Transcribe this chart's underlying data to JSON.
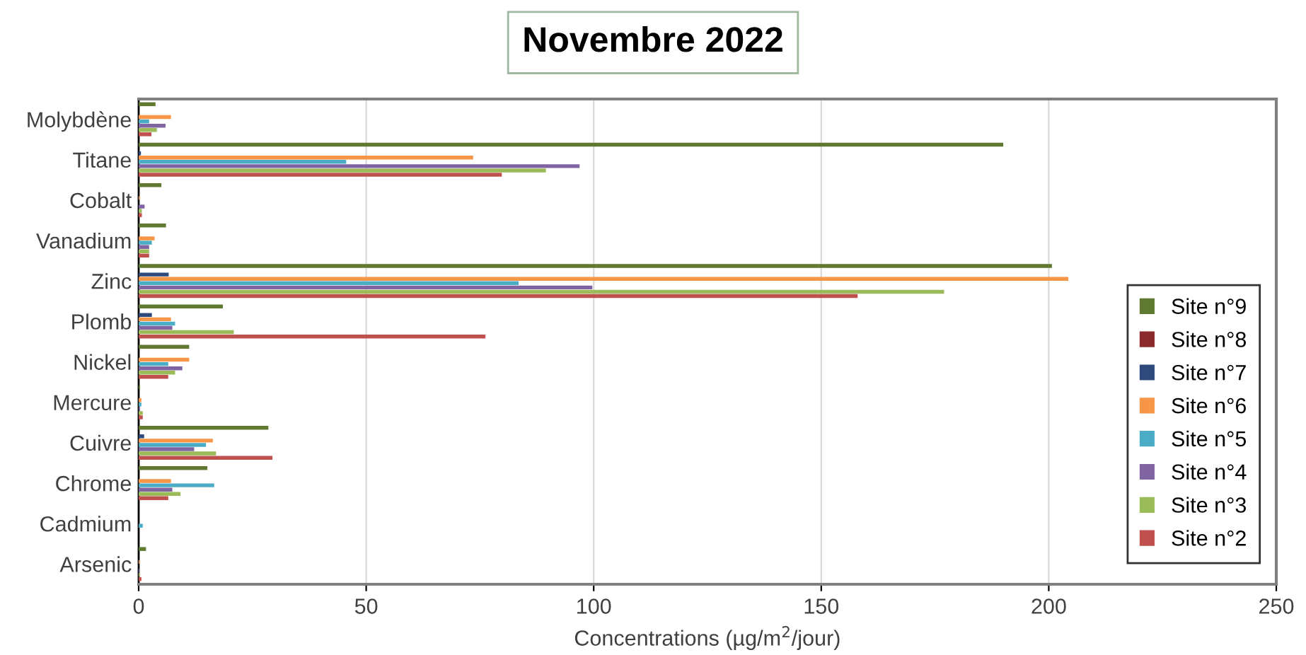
{
  "chart_data": {
    "type": "bar",
    "orientation": "horizontal",
    "title": "Novembre 2022",
    "xlabel": "Concentrations (µg/m$^{2}$/jour)",
    "categories": [
      "Molybdène",
      "Titane",
      "Cobalt",
      "Vanadium",
      "Zinc",
      "Plomb",
      "Nickel",
      "Mercure",
      "Cuivre",
      "Chrome",
      "Cadmium",
      "Arsenic"
    ],
    "series": [
      {
        "name": "Site n°9",
        "color": "#5f7a30",
        "values": [
          3.7,
          190,
          5.0,
          6.0,
          200.7,
          18.5,
          11.1,
          0.3,
          28.5,
          15.1,
          null,
          1.6
        ]
      },
      {
        "name": "Site n°8",
        "color": "#8b2a2a",
        "values": [
          null,
          null,
          null,
          null,
          null,
          null,
          null,
          null,
          null,
          null,
          null,
          null
        ]
      },
      {
        "name": "Site n°7",
        "color": "#2e4a7d",
        "values": [
          null,
          0.5,
          null,
          null,
          6.6,
          2.9,
          null,
          null,
          1.2,
          null,
          null,
          null
        ]
      },
      {
        "name": "Site n°6",
        "color": "#f79646",
        "values": [
          7.1,
          73.5,
          0.2,
          3.5,
          204.3,
          7.1,
          11.1,
          0.6,
          16.3,
          7.1,
          null,
          0.2
        ]
      },
      {
        "name": "Site n°5",
        "color": "#4bacc6",
        "values": [
          2.3,
          45.6,
          null,
          2.9,
          83.5,
          8.0,
          6.5,
          0.6,
          14.8,
          16.6,
          0.9,
          null
        ]
      },
      {
        "name": "Site n°4",
        "color": "#8064a2",
        "values": [
          5.9,
          96.9,
          1.3,
          2.3,
          99.7,
          7.4,
          9.6,
          0.3,
          12.2,
          7.4,
          null,
          0.2
        ]
      },
      {
        "name": "Site n°3",
        "color": "#9bbb59",
        "values": [
          4.0,
          89.5,
          0.7,
          2.3,
          177,
          20.9,
          8.0,
          0.9,
          17.0,
          9.2,
          null,
          0.2
        ]
      },
      {
        "name": "Site n°2",
        "color": "#c0504d",
        "values": [
          2.8,
          79.8,
          0.7,
          2.3,
          158,
          76.2,
          6.5,
          0.9,
          29.4,
          6.5,
          null,
          0.6
        ]
      }
    ],
    "xlim": [
      0,
      250
    ],
    "xticks": [
      0,
      50,
      100,
      150,
      200,
      250
    ],
    "grid": "x",
    "legend": "right"
  }
}
